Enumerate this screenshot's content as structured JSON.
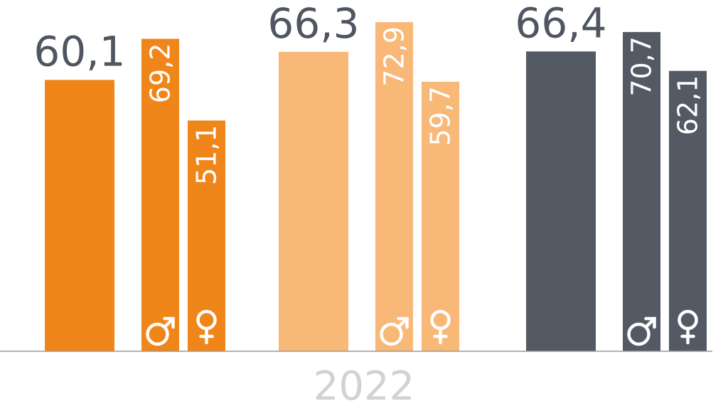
{
  "chart_data": {
    "type": "bar",
    "ylim": [
      0,
      75
    ],
    "grid": false,
    "legend": "none",
    "year_label": "2022",
    "groups": [
      {
        "total": 60.1,
        "total_label": "60,1",
        "male": 69.2,
        "male_label": "69,2",
        "female": 51.1,
        "female_label": "51,1",
        "color": "#f08519"
      },
      {
        "total": 66.3,
        "total_label": "66,3",
        "male": 72.9,
        "male_label": "72,9",
        "female": 59.7,
        "female_label": "59,7",
        "color": "#f7b878"
      },
      {
        "total": 66.4,
        "total_label": "66,4",
        "male": 70.7,
        "male_label": "70,7",
        "female": 62.1,
        "female_label": "62,1",
        "color": "#535a64"
      }
    ],
    "colors": {
      "total_text": "#4f5661",
      "year_text": "#d2d2d2",
      "axis": "#9a9a9a",
      "bar_text": "#ffffff"
    },
    "icons": {
      "male": "male-symbol-icon",
      "female": "female-symbol-icon"
    }
  }
}
